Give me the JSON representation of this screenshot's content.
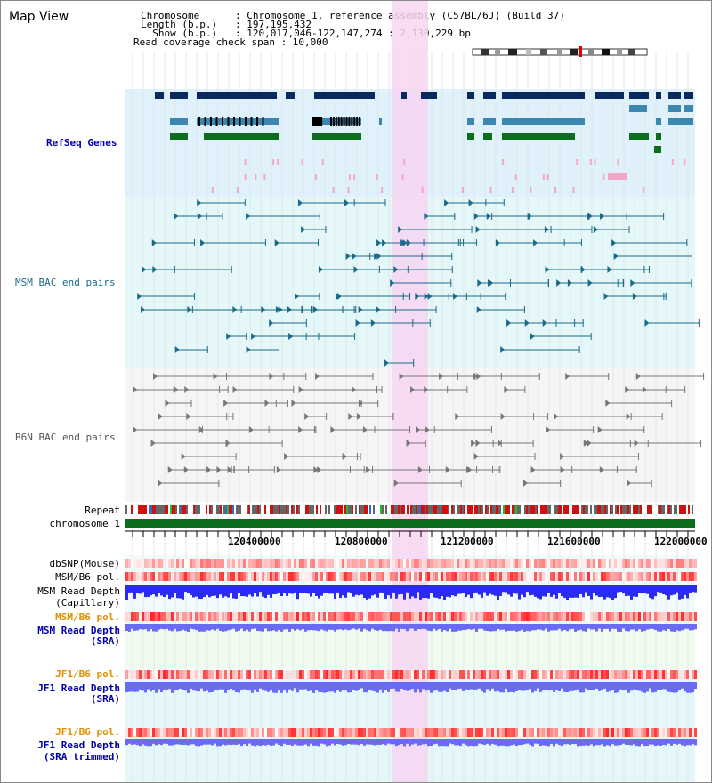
{
  "page": {
    "title": "Map View"
  },
  "info": {
    "line1": "Chromosome      : Chromosome 1, reference assembly (C57BL/6J) (Build 37)",
    "line2": "Length (b.p.)   : 197,195,432",
    "line3": "  Show (b.p.)   : 120,017,046-122,147,274 : 2,130,229 bp",
    "line4": "Read coverage check span : 10,000"
  },
  "tracks": {
    "refseq": "RefSeq Genes",
    "msm_bac": "MSM BAC end pairs",
    "b6n_bac": "B6N BAC end pairs",
    "repeat": "Repeat",
    "chromosome": "chromosome 1",
    "dbsnp": "dbSNP(Mouse)",
    "msm_b6_pol_1": "MSM/B6 pol.",
    "msm_read_depth_cap_1": "MSM Read Depth",
    "msm_read_depth_cap_2": "(Capillary)",
    "msm_b6_pol_2": "MSM/B6 pol.",
    "msm_read_depth_sra_1": "MSM Read Depth",
    "msm_read_depth_sra_2": "(SRA)",
    "jf1_b6_pol_1": "JF1/B6 pol.",
    "jf1_read_depth_sra_1": "JF1 Read Depth",
    "jf1_read_depth_sra_2": "(SRA)",
    "jf1_b6_pol_2": "JF1/B6 pol.",
    "jf1_read_depth_trim_1": "JF1 Read Depth",
    "jf1_read_depth_trim_2": "(SRA trimmed)"
  },
  "axis": {
    "ticks": [
      "120400000",
      "120800000",
      "121200000",
      "121600000",
      "122000000"
    ]
  },
  "colors": {
    "refseq_bg": "#dff2fb",
    "msm_bac_bg": "#e4f8fa",
    "b6n_bac_bg": "#f5f5f8",
    "highlight": "#f7d6f2",
    "gene_dark": "#0a2a5e",
    "gene_mid": "#3b87b0",
    "gene_green": "#0b6e1d",
    "chromosome_green": "#0b6e1d",
    "depth_blue": "#2a2af0",
    "depth_light": "#6a6af5"
  }
}
